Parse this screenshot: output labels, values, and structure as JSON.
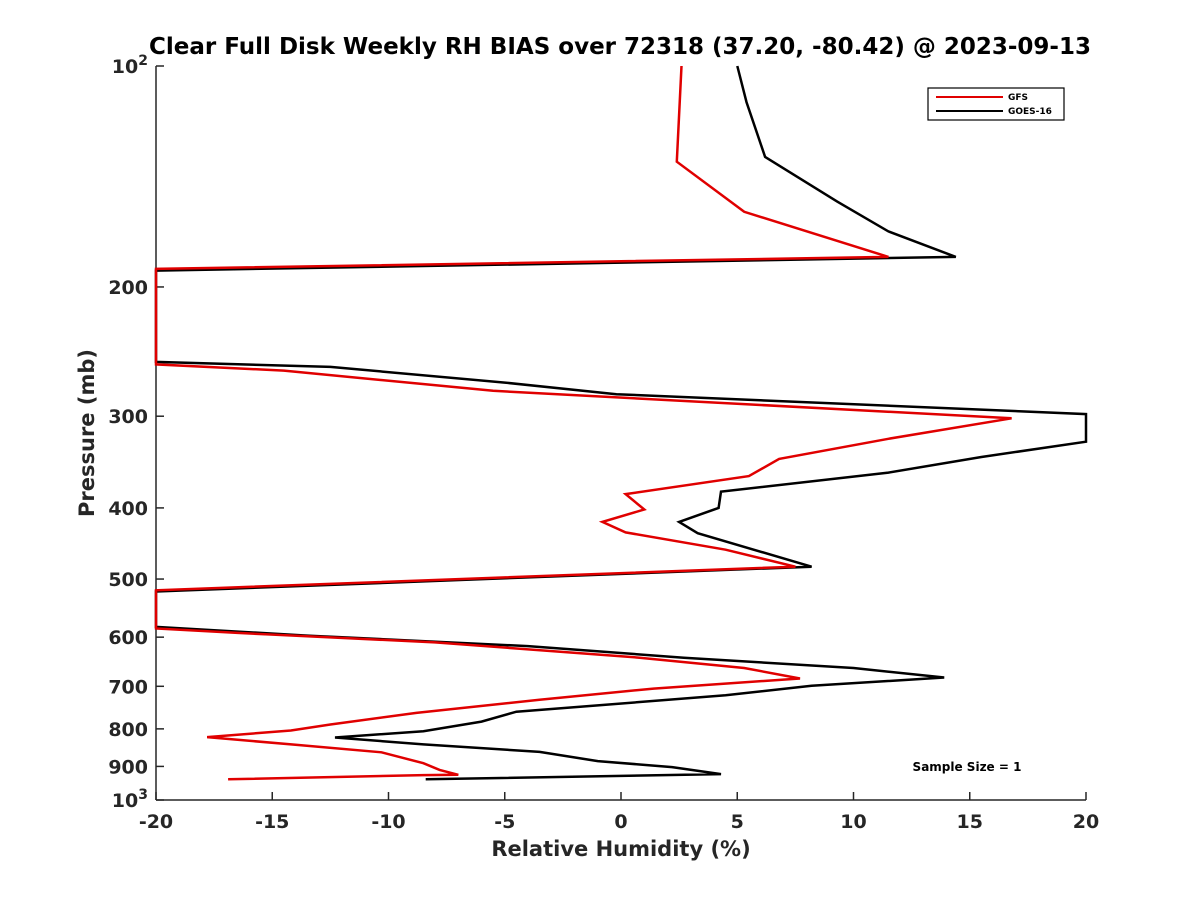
{
  "chart_data": {
    "type": "line",
    "title": "Clear Full Disk Weekly RH BIAS over 72318 (37.20, -80.42) @ 2023-09-13",
    "xlabel": "Relative Humidity (%)",
    "ylabel": "Pressure (mb)",
    "xlim": [
      -20,
      20
    ],
    "ylim": [
      100,
      1000
    ],
    "y_scale": "log",
    "y_reversed": true,
    "grid": false,
    "legend_position": "top-right",
    "x_ticks": [
      "-20",
      "-15",
      "-10",
      "-5",
      "0",
      "5",
      "10",
      "15",
      "20"
    ],
    "y_ticks": [
      {
        "value": 100,
        "base": "10",
        "exp": "2"
      },
      {
        "value": 200,
        "label": "200"
      },
      {
        "value": 300,
        "label": "300"
      },
      {
        "value": 400,
        "label": "400"
      },
      {
        "value": 500,
        "label": "500"
      },
      {
        "value": 600,
        "label": "600"
      },
      {
        "value": 700,
        "label": "700"
      },
      {
        "value": 800,
        "label": "800"
      },
      {
        "value": 900,
        "label": "900"
      },
      {
        "value": 1000,
        "base": "10",
        "exp": "3"
      }
    ],
    "annotation": "Sample Size = 1",
    "series": [
      {
        "name": "GFS",
        "color": "#e00000",
        "points": [
          [
            2.6,
            100
          ],
          [
            2.4,
            135
          ],
          [
            5.3,
            158
          ],
          [
            11.5,
            182
          ],
          [
            -20,
            189
          ],
          [
            -20,
            255
          ],
          [
            -14.5,
            260
          ],
          [
            -5.5,
            277
          ],
          [
            16.8,
            302
          ],
          [
            11.5,
            322
          ],
          [
            6.8,
            343
          ],
          [
            5.5,
            362
          ],
          [
            0.2,
            383
          ],
          [
            1.0,
            402
          ],
          [
            -0.8,
            418
          ],
          [
            0.2,
            432
          ],
          [
            4.5,
            456
          ],
          [
            7.5,
            481
          ],
          [
            -20,
            518
          ],
          [
            -20,
            584
          ],
          [
            -16.5,
            592
          ],
          [
            -8.0,
            610
          ],
          [
            0.8,
            640
          ],
          [
            5.3,
            661
          ],
          [
            7.7,
            683
          ],
          [
            1.4,
            705
          ],
          [
            -3.5,
            730
          ],
          [
            -8.8,
            761
          ],
          [
            -12.5,
            789
          ],
          [
            -14.2,
            804
          ],
          [
            -17.8,
            821
          ],
          [
            -14.0,
            841
          ],
          [
            -10.3,
            861
          ],
          [
            -8.5,
            891
          ],
          [
            -7.8,
            910
          ],
          [
            -7.0,
            924
          ],
          [
            -8.5,
            925
          ],
          [
            -16.9,
            937
          ]
        ]
      },
      {
        "name": "GOES-16",
        "color": "#000000",
        "points": [
          [
            5.0,
            100
          ],
          [
            5.4,
            112
          ],
          [
            6.2,
            133
          ],
          [
            9.3,
            153
          ],
          [
            11.5,
            168
          ],
          [
            14.4,
            182
          ],
          [
            -20,
            190
          ],
          [
            -20,
            253
          ],
          [
            -12.5,
            257
          ],
          [
            -5.0,
            270
          ],
          [
            -0.2,
            280
          ],
          [
            20,
            298
          ],
          [
            20,
            325
          ],
          [
            15.5,
            341
          ],
          [
            11.5,
            358
          ],
          [
            4.3,
            380
          ],
          [
            4.2,
            400
          ],
          [
            2.5,
            418
          ],
          [
            3.3,
            433
          ],
          [
            8.2,
            481
          ],
          [
            -20,
            520
          ],
          [
            -20,
            581
          ],
          [
            -13.5,
            597
          ],
          [
            -4.0,
            617
          ],
          [
            2.7,
            640
          ],
          [
            10.0,
            661
          ],
          [
            13.9,
            681
          ],
          [
            8.2,
            699
          ],
          [
            4.5,
            720
          ],
          [
            -4.5,
            758
          ],
          [
            -6.0,
            782
          ],
          [
            -8.5,
            806
          ],
          [
            -12.3,
            822
          ],
          [
            -8.5,
            840
          ],
          [
            -3.5,
            860
          ],
          [
            -1.0,
            885
          ],
          [
            2.2,
            902
          ],
          [
            4.3,
            922
          ],
          [
            -8.4,
            937
          ]
        ]
      }
    ]
  }
}
